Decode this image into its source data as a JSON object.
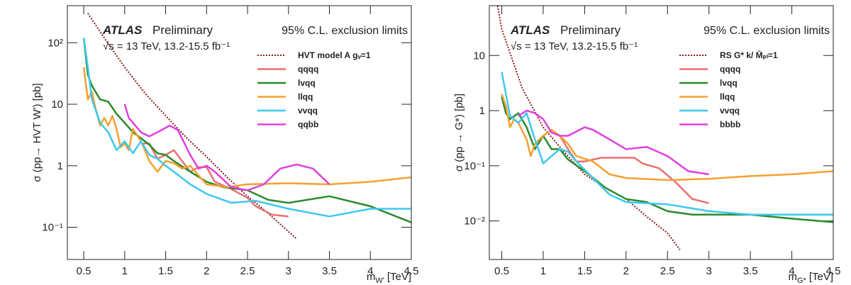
{
  "chart_data": [
    {
      "type": "line",
      "atlas": "ATLAS",
      "status": "Preliminary",
      "energy": "√s = 13 TeV, 13.2-15.5 fb⁻¹",
      "cl": "95% C.L. exclusion limits",
      "y_label": "σ (pp→ HVT W') [pb]",
      "x_label": "m",
      "x_label_sub": "W'",
      "x_label_unit": "[TeV]",
      "log_y": true,
      "xlim": [
        0.3,
        4.5
      ],
      "ylim": [
        0.03,
        400
      ],
      "xticks": [
        0.5,
        1,
        1.5,
        2,
        2.5,
        3,
        3.5,
        4,
        4.5
      ],
      "yticks": [
        {
          "value": 0.1,
          "label": "10⁻¹"
        },
        1,
        10,
        {
          "value": 100,
          "label": "10²"
        }
      ],
      "series": [
        {
          "name": "HVT model A gᵥ=1",
          "color": "#8b1a1a",
          "dotted": true,
          "x": [
            0.55,
            0.75,
            1,
            1.25,
            1.5,
            1.75,
            2,
            2.25,
            2.5,
            2.75,
            3,
            3.1
          ],
          "values": [
            300,
            120,
            40,
            15,
            6.5,
            2.9,
            1.4,
            0.65,
            0.32,
            0.17,
            0.085,
            0.065
          ]
        },
        {
          "name": "qqqq",
          "color": "#e8706e",
          "x": [
            1.2,
            1.3,
            1.4,
            1.5,
            1.6,
            1.7,
            1.8,
            1.9,
            2.0,
            2.1,
            2.3,
            2.5,
            2.6,
            2.8,
            3.0
          ],
          "values": [
            2.3,
            2.3,
            1.3,
            1.5,
            1.8,
            1.2,
            0.8,
            0.95,
            0.95,
            0.55,
            0.42,
            0.3,
            0.22,
            0.16,
            0.15
          ]
        },
        {
          "name": "lvqq",
          "color": "#2a8a2a",
          "x": [
            0.5,
            0.55,
            0.6,
            0.7,
            0.8,
            0.9,
            1.0,
            1.1,
            1.2,
            1.3,
            1.4,
            1.5,
            1.6,
            1.8,
            2.0,
            2.2,
            2.5,
            2.75,
            3.0,
            3.5,
            4.0,
            4.5
          ],
          "values": [
            120,
            30,
            20,
            12,
            11,
            7,
            5,
            3.5,
            2.8,
            2.2,
            1.6,
            1.5,
            1.2,
            0.8,
            0.55,
            0.45,
            0.4,
            0.28,
            0.25,
            0.32,
            0.22,
            0.12
          ]
        },
        {
          "name": "llqq",
          "color": "#f5a030",
          "x": [
            0.5,
            0.55,
            0.6,
            0.65,
            0.7,
            0.75,
            0.8,
            0.85,
            0.9,
            0.95,
            1.0,
            1.05,
            1.1,
            1.2,
            1.3,
            1.4,
            1.5,
            1.6,
            1.7,
            1.8,
            1.9,
            2.0,
            2.25,
            2.5,
            3.0,
            3.5,
            4.0,
            4.5
          ],
          "values": [
            40,
            12,
            16,
            8,
            4.5,
            6,
            4.5,
            6.5,
            4,
            2.0,
            2.3,
            1.8,
            4,
            2.5,
            1.2,
            0.8,
            1.2,
            1.1,
            0.9,
            1.0,
            0.7,
            0.5,
            0.45,
            0.5,
            0.52,
            0.5,
            0.55,
            0.65
          ]
        },
        {
          "name": "vvqq",
          "color": "#3cc8f0",
          "x": [
            0.5,
            0.55,
            0.6,
            0.7,
            0.8,
            0.9,
            1.0,
            1.1,
            1.2,
            1.3,
            1.4,
            1.5,
            1.6,
            1.8,
            2.0,
            2.3,
            2.6,
            3.0,
            3.5,
            4.0,
            4.5
          ],
          "values": [
            120,
            40,
            12,
            5,
            3.5,
            1.8,
            2.5,
            1.6,
            2.5,
            1.5,
            1.3,
            1.0,
            0.8,
            0.5,
            0.35,
            0.25,
            0.27,
            0.2,
            0.15,
            0.2,
            0.2
          ]
        },
        {
          "name": "qqbb",
          "color": "#e040e0",
          "x": [
            1.0,
            1.05,
            1.2,
            1.3,
            1.4,
            1.55,
            1.65,
            1.8,
            1.9,
            2.0,
            2.1,
            2.3,
            2.5,
            2.7,
            2.9,
            3.1,
            3.3,
            3.5
          ],
          "values": [
            10,
            6,
            3.5,
            3.0,
            3.5,
            4.5,
            3.8,
            1.5,
            0.9,
            1.0,
            0.8,
            0.45,
            0.4,
            0.5,
            0.9,
            1.05,
            0.9,
            0.5
          ]
        }
      ]
    },
    {
      "type": "line",
      "atlas": "ATLAS",
      "status": "Preliminary",
      "energy": "√s = 13 TeV, 13.2-15.5 fb⁻¹",
      "cl": "95% C.L. exclusion limits",
      "y_label": "σ (pp → G*) [pb]",
      "x_label": "m",
      "x_label_sub": "G*",
      "x_label_unit": "[TeV]",
      "log_y": true,
      "xlim": [
        0.35,
        4.5
      ],
      "ylim": [
        0.002,
        80
      ],
      "xticks": [
        0.5,
        1,
        1.5,
        2,
        2.5,
        3,
        3.5,
        4,
        4.5
      ],
      "yticks": [
        {
          "value": 0.01,
          "label": "10⁻²"
        },
        {
          "value": 0.1,
          "label": "10⁻¹"
        },
        1,
        10
      ],
      "series": [
        {
          "name": "RS G* k/ M̄ₚₗ=1",
          "color": "#8b1a1a",
          "dotted": true,
          "x": [
            0.45,
            0.5,
            0.75,
            1.0,
            1.25,
            1.5,
            1.75,
            2.0,
            2.25,
            2.5,
            2.65
          ],
          "values": [
            80,
            30,
            2.5,
            0.5,
            0.18,
            0.07,
            0.04,
            0.025,
            0.012,
            0.006,
            0.003
          ]
        },
        {
          "name": "qqqq",
          "color": "#e8706e",
          "x": [
            1.2,
            1.3,
            1.4,
            1.5,
            1.7,
            1.9,
            2.1,
            2.2,
            2.4,
            2.6,
            2.8,
            3.0
          ],
          "values": [
            0.35,
            0.2,
            0.12,
            0.12,
            0.14,
            0.14,
            0.14,
            0.11,
            0.09,
            0.05,
            0.025,
            0.021
          ]
        },
        {
          "name": "lvqq",
          "color": "#2a8a2a",
          "x": [
            0.5,
            0.55,
            0.6,
            0.7,
            0.8,
            0.9,
            1.0,
            1.1,
            1.2,
            1.3,
            1.5,
            1.75,
            2.0,
            2.25,
            2.5,
            2.8,
            3.5,
            4.0,
            4.5
          ],
          "values": [
            1.8,
            0.9,
            0.7,
            0.9,
            0.5,
            0.2,
            0.35,
            0.2,
            0.2,
            0.13,
            0.08,
            0.04,
            0.025,
            0.022,
            0.015,
            0.013,
            0.013,
            0.011,
            0.0095
          ]
        },
        {
          "name": "llqq",
          "color": "#f5a030",
          "x": [
            0.5,
            0.55,
            0.6,
            0.65,
            0.7,
            0.8,
            0.85,
            0.9,
            1.0,
            1.1,
            1.2,
            1.3,
            1.4,
            1.6,
            1.8,
            2.0,
            2.5,
            3.0,
            3.5,
            4.0,
            4.5
          ],
          "values": [
            2,
            1.2,
            0.5,
            0.7,
            0.6,
            0.3,
            0.15,
            0.25,
            0.35,
            0.45,
            0.35,
            0.25,
            0.15,
            0.12,
            0.07,
            0.06,
            0.055,
            0.058,
            0.065,
            0.07,
            0.08
          ]
        },
        {
          "name": "vvqq",
          "color": "#3cc8f0",
          "x": [
            0.5,
            0.55,
            0.6,
            0.7,
            0.8,
            0.9,
            1.0,
            1.1,
            1.2,
            1.3,
            1.4,
            1.6,
            1.8,
            2.0,
            2.5,
            3.0,
            3.5,
            4.5
          ],
          "values": [
            5,
            2,
            0.8,
            0.6,
            0.9,
            0.3,
            0.11,
            0.15,
            0.2,
            0.18,
            0.12,
            0.06,
            0.03,
            0.022,
            0.02,
            0.015,
            0.013,
            0.013
          ]
        },
        {
          "name": "bbbb",
          "color": "#e040e0",
          "x": [
            0.7,
            0.8,
            0.9,
            1.0,
            1.1,
            1.2,
            1.3,
            1.5,
            1.6,
            1.8,
            2.0,
            2.25,
            2.5,
            2.75,
            3.0
          ],
          "values": [
            0.8,
            1.0,
            0.9,
            0.7,
            0.4,
            0.35,
            0.35,
            0.5,
            0.45,
            0.3,
            0.2,
            0.22,
            0.15,
            0.08,
            0.07
          ]
        }
      ]
    }
  ]
}
